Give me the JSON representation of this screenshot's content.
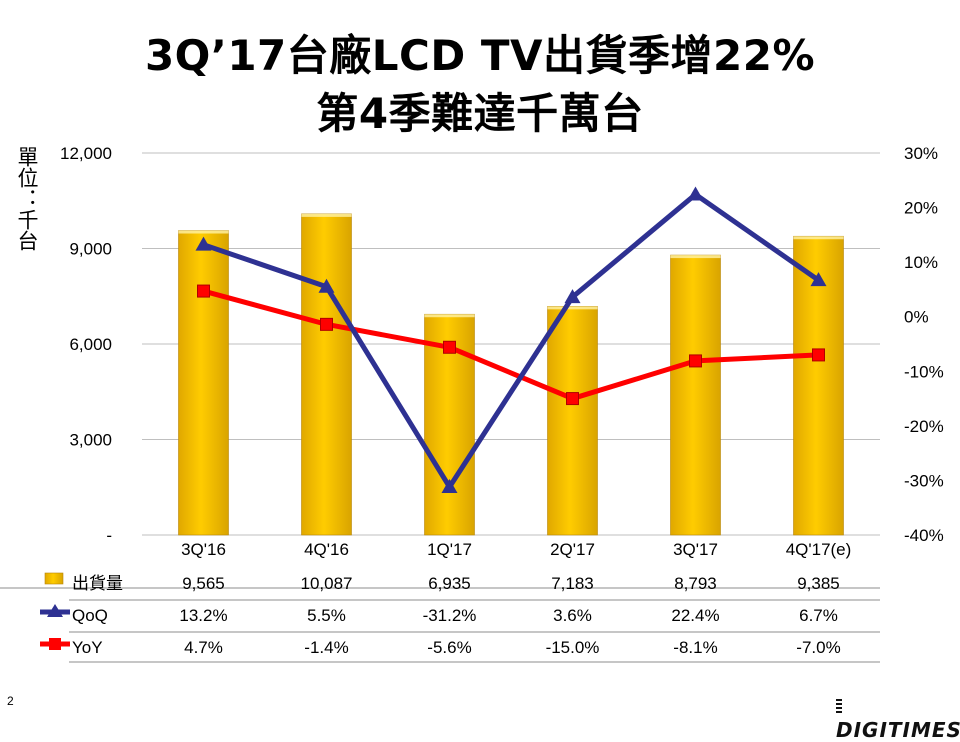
{
  "title_line1": "3Q’17台廠LCD TV出貨季增22%",
  "title_line2": "第4季難達千萬台",
  "unit_label": "單位：千台",
  "page_number": "2",
  "logo_text": "DIGITIMES",
  "colors": {
    "bar": "#FFCC00",
    "bar_edge": "#B8860B",
    "qoq": "#2E3192",
    "yoy": "#FF0000",
    "grid": "#BFBFBF"
  },
  "chart_data": {
    "type": "bar",
    "categories": [
      "3Q'16",
      "4Q'16",
      "1Q'17",
      "2Q'17",
      "3Q'17",
      "4Q'17(e)"
    ],
    "left_axis": {
      "min": 0,
      "max": 12000,
      "ticks": [
        "-",
        "3,000",
        "6,000",
        "9,000",
        "12,000"
      ]
    },
    "right_axis": {
      "min": -40,
      "max": 30,
      "ticks": [
        "-40%",
        "-30%",
        "-20%",
        "-10%",
        "0%",
        "10%",
        "20%",
        "30%"
      ]
    },
    "series": [
      {
        "name": "出貨量",
        "type": "bar",
        "axis": "left",
        "values": [
          9565,
          10087,
          6935,
          7183,
          8793,
          9385
        ],
        "labels": [
          "9,565",
          "10,087",
          "6,935",
          "7,183",
          "8,793",
          "9,385"
        ]
      },
      {
        "name": "QoQ",
        "type": "line",
        "axis": "right",
        "marker": "triangle",
        "values": [
          13.2,
          5.5,
          -31.2,
          3.6,
          22.4,
          6.7
        ],
        "labels": [
          "13.2%",
          "5.5%",
          "-31.2%",
          "3.6%",
          "22.4%",
          "6.7%"
        ]
      },
      {
        "name": "YoY",
        "type": "line",
        "axis": "right",
        "marker": "square",
        "values": [
          4.7,
          -1.4,
          -5.6,
          -15.0,
          -8.1,
          -7.0
        ],
        "labels": [
          "4.7%",
          "-1.4%",
          "-5.6%",
          "-15.0%",
          "-8.1%",
          "-7.0%"
        ]
      }
    ]
  }
}
